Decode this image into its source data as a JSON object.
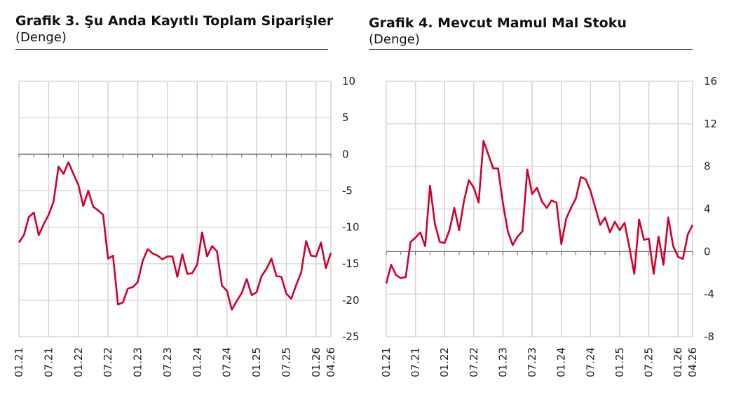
{
  "chart_data": [
    {
      "type": "line",
      "title": "Grafik 3. Şu Anda Kayıtlı Toplam Siparişler",
      "subtitle": "(Denge)",
      "ylim": [
        -25,
        10
      ],
      "yticks": [
        10,
        5,
        0,
        -5,
        -10,
        -15,
        -20,
        -25
      ],
      "xtick_labels": [
        "01.21",
        "07.21",
        "01.22",
        "07.22",
        "01.23",
        "07.23",
        "01.24",
        "07.24",
        "01.25",
        "07.25",
        "01.26",
        "04.26"
      ],
      "x_start": "01.21",
      "x_end": "04.26",
      "grid": true,
      "color": "#d0002a",
      "values": [
        -12.1,
        -11.1,
        -8.6,
        -8.0,
        -11.1,
        -9.6,
        -8.3,
        -6.5,
        -1.7,
        -2.7,
        -1.1,
        -2.7,
        -4.2,
        -7.1,
        -5.0,
        -7.2,
        -7.7,
        -8.3,
        -14.3,
        -13.9,
        -20.6,
        -20.3,
        -18.4,
        -18.2,
        -17.5,
        -14.6,
        -13.0,
        -13.6,
        -13.9,
        -14.4,
        -14.0,
        -14.0,
        -16.8,
        -13.7,
        -16.4,
        -16.3,
        -15.1,
        -10.7,
        -14.0,
        -12.6,
        -13.3,
        -18.0,
        -18.7,
        -21.3,
        -20.1,
        -19.0,
        -17.1,
        -19.3,
        -18.9,
        -16.7,
        -15.7,
        -14.3,
        -16.7,
        -16.8,
        -19.1,
        -19.8,
        -17.9,
        -16.2,
        -11.9,
        -13.9,
        -14.0,
        -12.1,
        -15.6,
        -13.5
      ]
    },
    {
      "type": "line",
      "title": "Grafik 4. Mevcut Mamul Mal Stoku",
      "subtitle": "(Denge)",
      "ylim": [
        -8,
        16
      ],
      "yticks": [
        16,
        12,
        8,
        4,
        0,
        -4,
        -8
      ],
      "xtick_labels": [
        "01.21",
        "07.21",
        "01.22",
        "07.22",
        "01.23",
        "07.23",
        "01.24",
        "07.24",
        "01.25",
        "07.25",
        "01.26",
        "04.26"
      ],
      "x_start": "01.21",
      "x_end": "04.26",
      "grid": true,
      "color": "#d0002a",
      "values": [
        -3.0,
        -1.25,
        -2.2,
        -2.5,
        -2.4,
        0.9,
        1.3,
        1.8,
        0.5,
        6.2,
        2.6,
        0.9,
        0.8,
        2.0,
        4.1,
        2.0,
        4.8,
        6.7,
        6.0,
        4.6,
        10.4,
        9.1,
        7.8,
        7.8,
        4.5,
        1.9,
        0.6,
        1.4,
        1.9,
        7.7,
        5.4,
        6.0,
        4.7,
        4.1,
        4.8,
        4.6,
        0.7,
        3.1,
        4.1,
        5.0,
        7.0,
        6.8,
        5.7,
        4.1,
        2.5,
        3.2,
        1.8,
        2.8,
        2.0,
        2.7,
        0.4,
        -2.1,
        3.0,
        1.1,
        1.2,
        -2.1,
        1.4,
        -1.25,
        3.2,
        0.5,
        -0.5,
        -0.7,
        1.6,
        2.5
      ]
    }
  ]
}
